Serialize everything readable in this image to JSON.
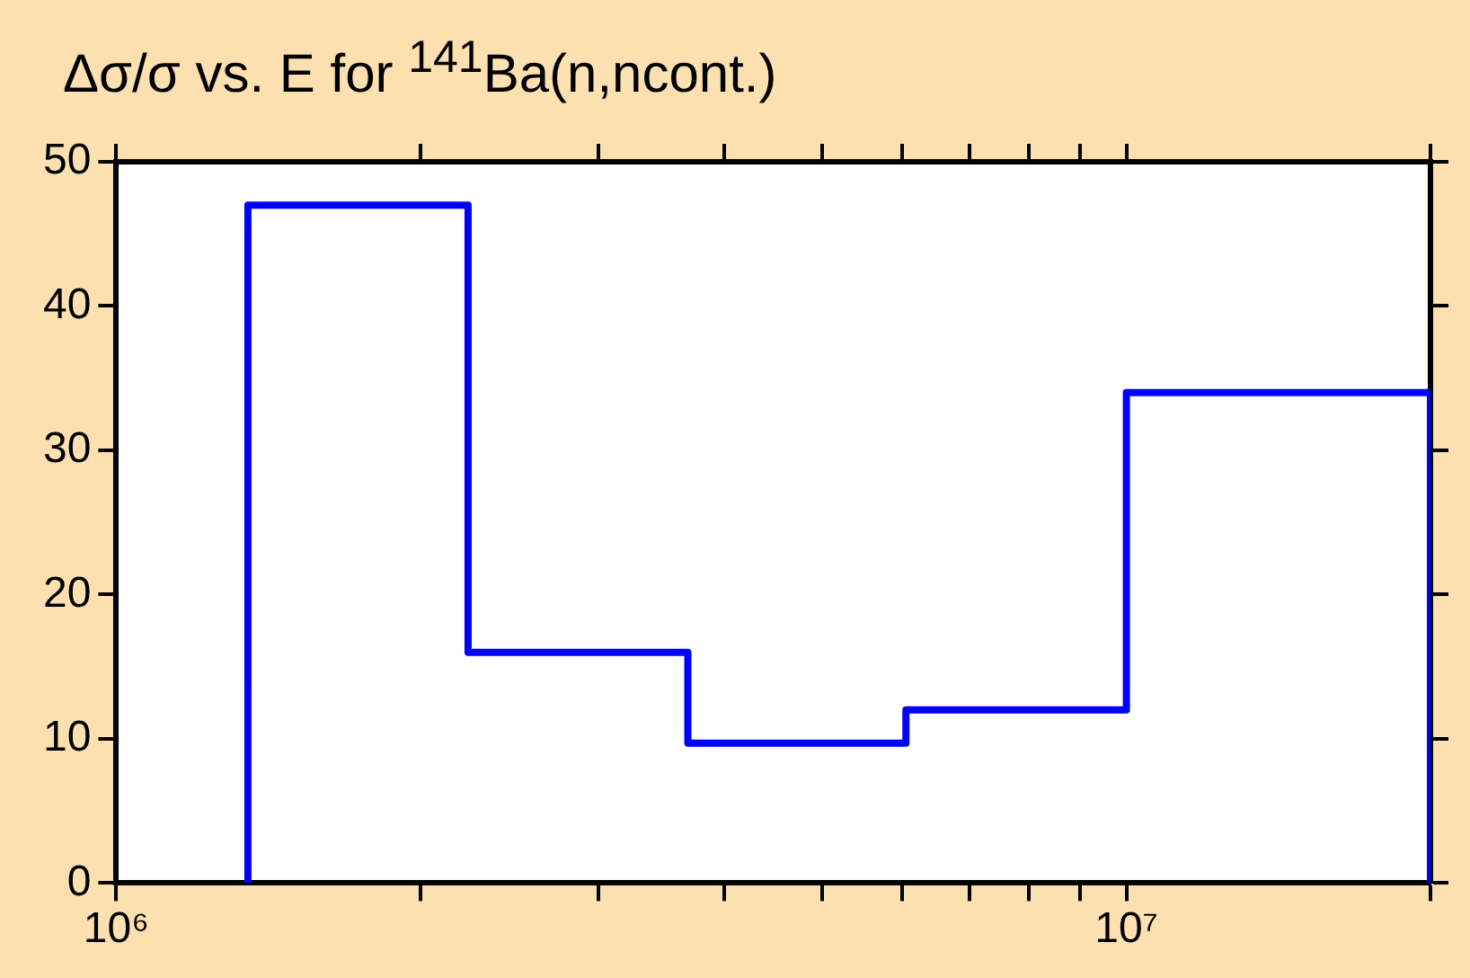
{
  "chart_data": {
    "type": "histogram",
    "title": "Δσ/σ vs. E for $^{141}$Ba(n,ncont.)",
    "bins": [
      1350000,
      2230000,
      3680000,
      6050000,
      10000000,
      20000000
    ],
    "values": [
      47,
      16,
      9.7,
      12,
      34
    ],
    "color": "#0000ff",
    "log": "x",
    "xlim": [
      1000000,
      20000000
    ],
    "xticks": [
      {
        "value": 1000000,
        "label": "10⁶"
      },
      {
        "value": 2000000,
        "label": null
      },
      {
        "value": 3000000,
        "label": null
      },
      {
        "value": 4000000,
        "label": null
      },
      {
        "value": 5000000,
        "label": null
      },
      {
        "value": 6000000,
        "label": null
      },
      {
        "value": 7000000,
        "label": null
      },
      {
        "value": 8000000,
        "label": null
      },
      {
        "value": 9000000,
        "label": null
      },
      {
        "value": 10000000,
        "label": "10⁷"
      },
      {
        "value": 20000000,
        "label": null
      }
    ],
    "ylim": [
      0,
      50
    ],
    "yticks": [
      0,
      10,
      20,
      30,
      40,
      50
    ]
  }
}
